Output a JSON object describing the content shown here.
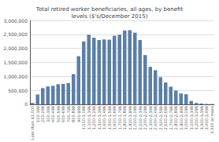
{
  "chart_data": {
    "type": "bar",
    "title": "Total retired worker beneficiaries, all ages, by benefit\nlevels ($'s/December 2015)",
    "categories": [
      "Less than $1,000",
      "100-199",
      "200-299",
      "300-399",
      "400-499",
      "500-599",
      "600-699",
      "700-799",
      "800-899",
      "900-999",
      "1,000-1,099",
      "1,100-1,199",
      "1,200-1,299",
      "1,300-1,399",
      "1,400-1,499",
      "1,500-1,599",
      "1,600-1,699",
      "1,700-1,799",
      "1,800-1,899",
      "1,900-1,999",
      "2,000-2,099",
      "2,100-2,199",
      "2,200-2,299",
      "2,300-2,399",
      "2,400-2,499",
      "2,500-2,599",
      "2,600-2,699",
      "2,700-2,799",
      "2,800-2,899",
      "2,900-2,999",
      "3,000-3,099",
      "3,100-3,199",
      "3,200-3,299",
      "3,300-3,399",
      "3,400-3,499",
      "3,500 or more"
    ],
    "values": [
      50000,
      350000,
      580000,
      640000,
      660000,
      720000,
      730000,
      760000,
      1080000,
      1720000,
      2250000,
      2490000,
      2380000,
      2300000,
      2320000,
      2310000,
      2450000,
      2490000,
      2640000,
      2650000,
      2560000,
      2300000,
      1760000,
      1340000,
      1220000,
      970000,
      780000,
      630000,
      490000,
      390000,
      360000,
      120000,
      50000,
      25000,
      15000,
      12000
    ],
    "color": "#5b7fa6",
    "ylim": [
      0,
      3000000
    ],
    "yticks": [
      0,
      {
        "value": 500000,
        "label": "500,000"
      },
      {
        "value": 1000000,
        "label": "1,000,000"
      },
      {
        "value": 1500000,
        "label": "1,500,000"
      },
      {
        "value": 2000000,
        "label": "2,000,000"
      },
      {
        "value": 2500000,
        "label": "2,500,000"
      },
      {
        "value": 3000000,
        "label": "3,000,000"
      }
    ],
    "grid": true
  }
}
